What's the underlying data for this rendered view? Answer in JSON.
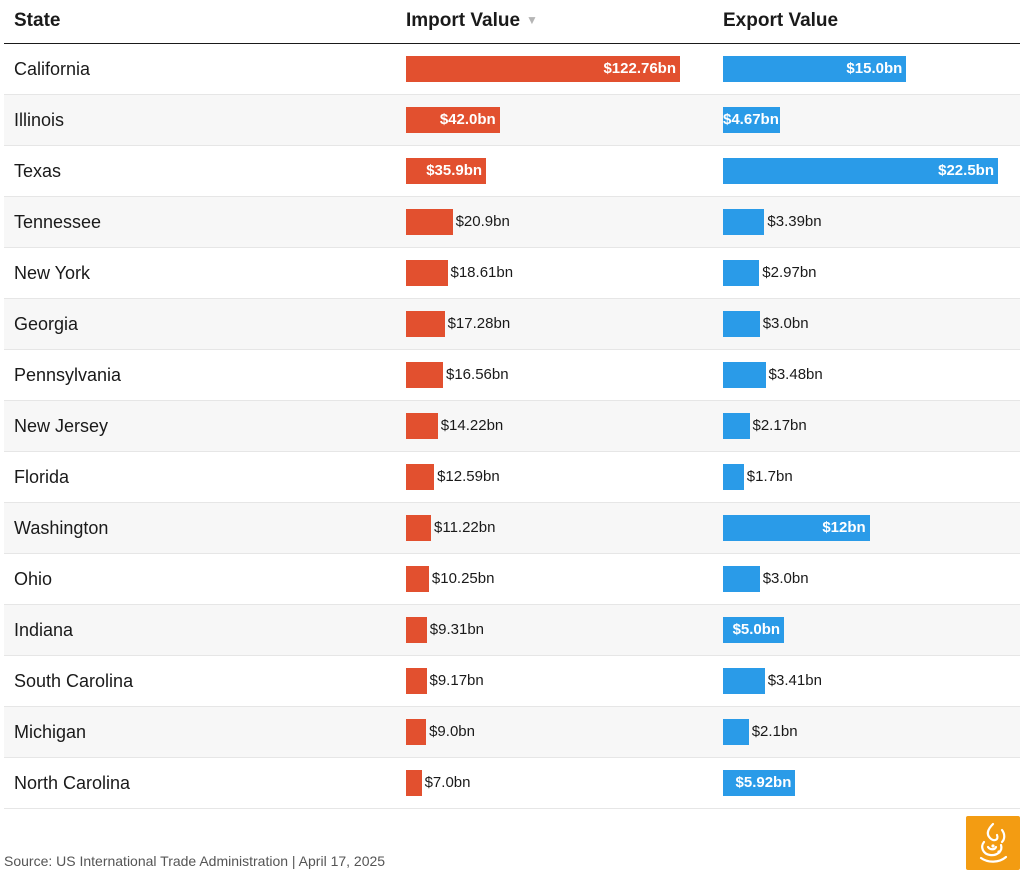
{
  "header": {
    "state": "State",
    "import": "Import Value",
    "export": "Export Value",
    "sort_icon": "▼"
  },
  "colors": {
    "import": "#e2502f",
    "export": "#2a9be8",
    "logo_bg": "#f39c12"
  },
  "chart_data": {
    "type": "table",
    "columns": [
      "State",
      "Import Value",
      "Export Value"
    ],
    "import_max": 122.76,
    "export_max": 22.5,
    "rows": [
      {
        "state": "California",
        "import": 122.76,
        "import_label": "$122.76bn",
        "export": 15.0,
        "export_label": "$15.0bn"
      },
      {
        "state": "Illinois",
        "import": 42.0,
        "import_label": "$42.0bn",
        "export": 4.67,
        "export_label": "$4.67bn"
      },
      {
        "state": "Texas",
        "import": 35.9,
        "import_label": "$35.9bn",
        "export": 22.5,
        "export_label": "$22.5bn"
      },
      {
        "state": "Tennessee",
        "import": 20.9,
        "import_label": "$20.9bn",
        "export": 3.39,
        "export_label": "$3.39bn"
      },
      {
        "state": "New York",
        "import": 18.61,
        "import_label": "$18.61bn",
        "export": 2.97,
        "export_label": "$2.97bn"
      },
      {
        "state": "Georgia",
        "import": 17.28,
        "import_label": "$17.28bn",
        "export": 3.0,
        "export_label": "$3.0bn"
      },
      {
        "state": "Pennsylvania",
        "import": 16.56,
        "import_label": "$16.56bn",
        "export": 3.48,
        "export_label": "$3.48bn"
      },
      {
        "state": "New Jersey",
        "import": 14.22,
        "import_label": "$14.22bn",
        "export": 2.17,
        "export_label": "$2.17bn"
      },
      {
        "state": "Florida",
        "import": 12.59,
        "import_label": "$12.59bn",
        "export": 1.7,
        "export_label": "$1.7bn"
      },
      {
        "state": "Washington",
        "import": 11.22,
        "import_label": "$11.22bn",
        "export": 12.0,
        "export_label": "$12bn"
      },
      {
        "state": "Ohio",
        "import": 10.25,
        "import_label": "$10.25bn",
        "export": 3.0,
        "export_label": "$3.0bn"
      },
      {
        "state": "Indiana",
        "import": 9.31,
        "import_label": "$9.31bn",
        "export": 5.0,
        "export_label": "$5.0bn"
      },
      {
        "state": "South Carolina",
        "import": 9.17,
        "import_label": "$9.17bn",
        "export": 3.41,
        "export_label": "$3.41bn"
      },
      {
        "state": "Michigan",
        "import": 9.0,
        "import_label": "$9.0bn",
        "export": 2.1,
        "export_label": "$2.1bn"
      },
      {
        "state": "North Carolina",
        "import": 7.0,
        "import_label": "$7.0bn",
        "export": 5.92,
        "export_label": "$5.92bn"
      }
    ]
  },
  "footer": {
    "source": "Source: US International Trade Administration | April 17, 2025",
    "logo_icon": "al-jazeera-logo-icon"
  }
}
